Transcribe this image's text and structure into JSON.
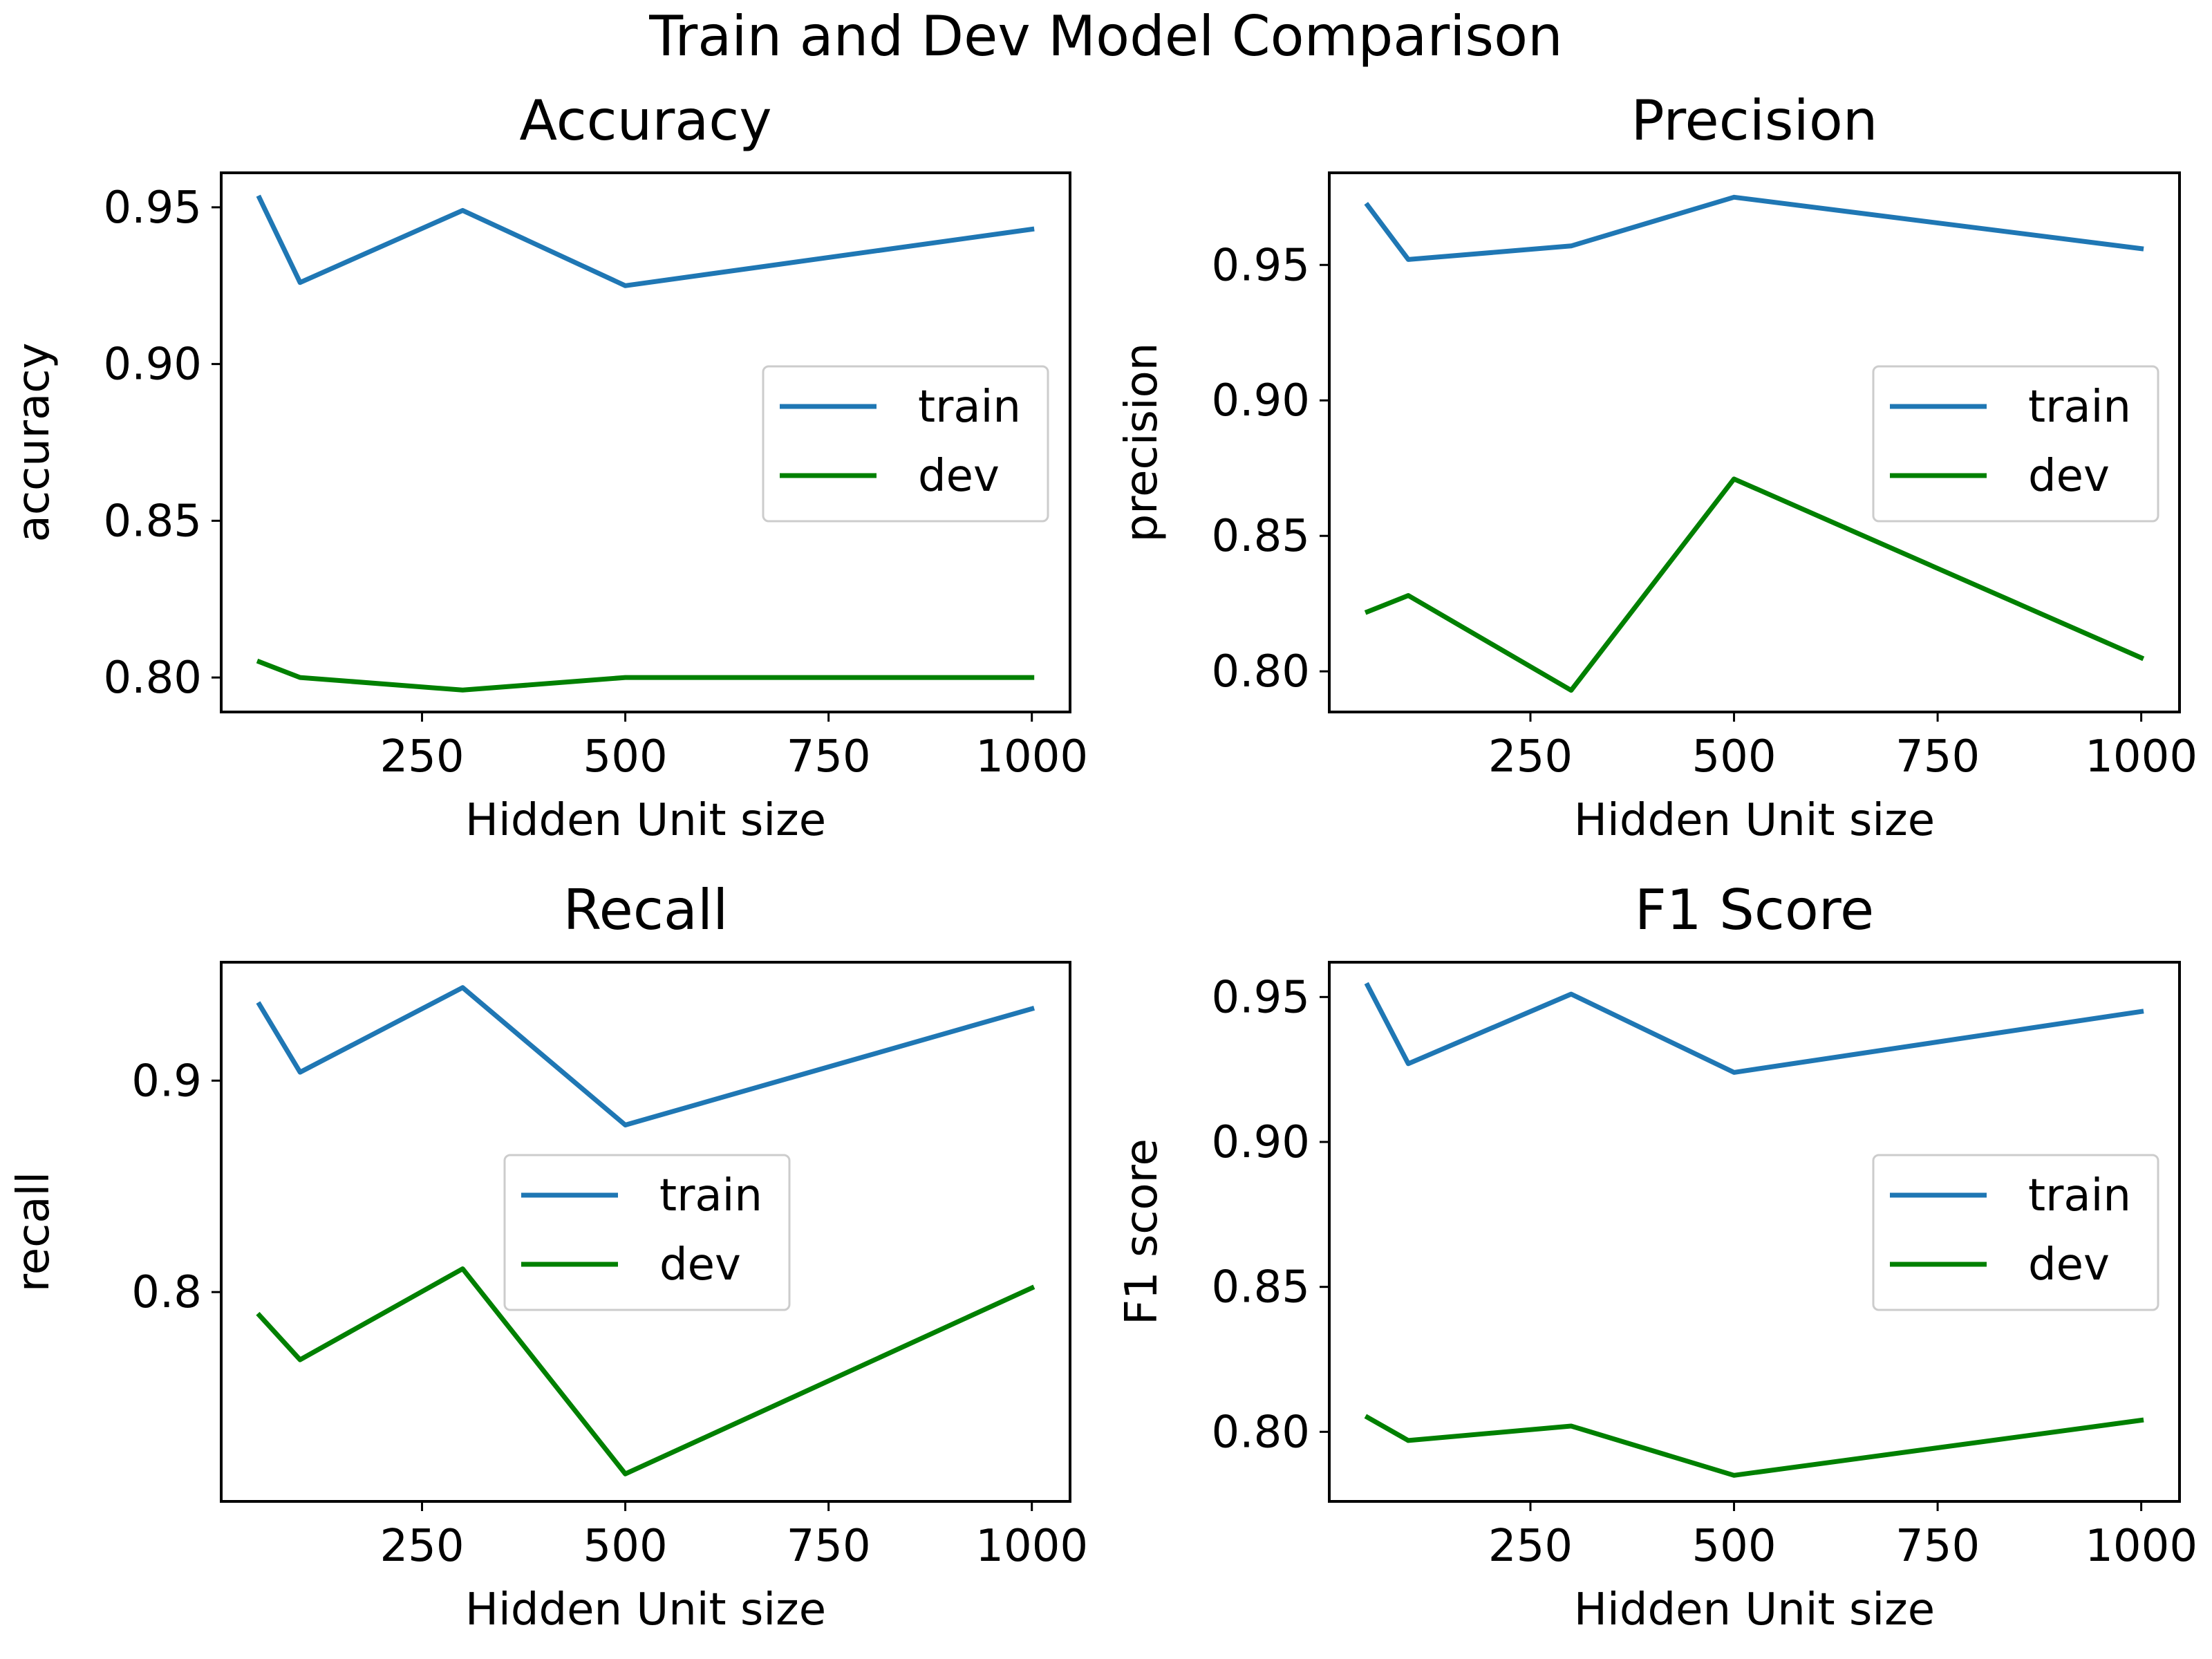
{
  "figure": {
    "title": "Train and Dev Model Comparison"
  },
  "colors": {
    "train": "#1f77b4",
    "dev": "#008000",
    "axis": "#000000"
  },
  "chart_data": [
    {
      "type": "line",
      "title": "Accuracy",
      "xlabel": "Hidden Unit size",
      "ylabel": "accuracy",
      "x": [
        50,
        100,
        300,
        500,
        1000
      ],
      "xlim": [
        3,
        1047
      ],
      "ylim": [
        0.789,
        0.961
      ],
      "xticks": [
        250,
        500,
        750,
        1000
      ],
      "xtick_labels": [
        "250",
        "500",
        "750",
        "1000"
      ],
      "yticks": [
        0.8,
        0.85,
        0.9,
        0.95
      ],
      "ytick_labels": [
        "0.80",
        "0.85",
        "0.90",
        "0.95"
      ],
      "series": [
        {
          "name": "train",
          "values": [
            0.953,
            0.926,
            0.949,
            0.925,
            0.943
          ]
        },
        {
          "name": "dev",
          "values": [
            0.805,
            0.8,
            0.796,
            0.8,
            0.8
          ]
        }
      ],
      "legend": "center-right",
      "grid": false
    },
    {
      "type": "line",
      "title": "Precision",
      "xlabel": "Hidden Unit size",
      "ylabel": "precision",
      "x": [
        50,
        100,
        300,
        500,
        1000
      ],
      "xlim": [
        3,
        1047
      ],
      "ylim": [
        0.785,
        0.984
      ],
      "xticks": [
        250,
        500,
        750,
        1000
      ],
      "xtick_labels": [
        "250",
        "500",
        "750",
        "1000"
      ],
      "yticks": [
        0.8,
        0.85,
        0.9,
        0.95
      ],
      "ytick_labels": [
        "0.80",
        "0.85",
        "0.90",
        "0.95"
      ],
      "series": [
        {
          "name": "train",
          "values": [
            0.972,
            0.952,
            0.957,
            0.975,
            0.956
          ]
        },
        {
          "name": "dev",
          "values": [
            0.822,
            0.828,
            0.793,
            0.871,
            0.805
          ]
        }
      ],
      "legend": "center-right",
      "grid": false
    },
    {
      "type": "line",
      "title": "Recall",
      "xlabel": "Hidden Unit size",
      "ylabel": "recall",
      "x": [
        50,
        100,
        300,
        500,
        1000
      ],
      "xlim": [
        3,
        1047
      ],
      "ylim": [
        0.701,
        0.956
      ],
      "xticks": [
        250,
        500,
        750,
        1000
      ],
      "xtick_labels": [
        "250",
        "500",
        "750",
        "1000"
      ],
      "yticks": [
        0.8,
        0.9
      ],
      "ytick_labels": [
        "0.8",
        "0.9"
      ],
      "series": [
        {
          "name": "train",
          "values": [
            0.936,
            0.904,
            0.944,
            0.879,
            0.934
          ]
        },
        {
          "name": "dev",
          "values": [
            0.789,
            0.768,
            0.811,
            0.714,
            0.802
          ]
        }
      ],
      "legend": "center",
      "grid": false
    },
    {
      "type": "line",
      "title": "F1 Score",
      "xlabel": "Hidden Unit size",
      "ylabel": "F1 score",
      "x": [
        50,
        100,
        300,
        500,
        1000
      ],
      "xlim": [
        3,
        1047
      ],
      "ylim": [
        0.776,
        0.962
      ],
      "xticks": [
        250,
        500,
        750,
        1000
      ],
      "xtick_labels": [
        "250",
        "500",
        "750",
        "1000"
      ],
      "yticks": [
        0.8,
        0.85,
        0.9,
        0.95
      ],
      "ytick_labels": [
        "0.80",
        "0.85",
        "0.90",
        "0.95"
      ],
      "series": [
        {
          "name": "train",
          "values": [
            0.954,
            0.927,
            0.951,
            0.924,
            0.945
          ]
        },
        {
          "name": "dev",
          "values": [
            0.805,
            0.797,
            0.802,
            0.785,
            0.804
          ]
        }
      ],
      "legend": "center-right",
      "grid": false
    }
  ]
}
